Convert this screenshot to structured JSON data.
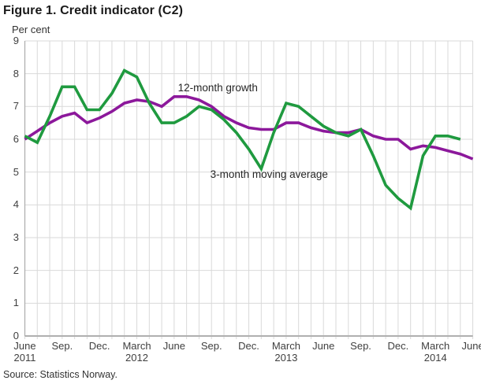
{
  "page": {
    "title": "Figure 1. Credit indicator (C2)",
    "subtitle": "Per cent",
    "source": "Source: Statistics Norway."
  },
  "colors": {
    "growth_line": "#1f9a3f",
    "moving_avg_line": "#8c189b",
    "grid": "#d9d9d9",
    "axis": "#b0b0b0",
    "tick_text": "#404040"
  },
  "chart_data": {
    "type": "line",
    "title": "Figure 1. Credit indicator (C2)",
    "ylabel": "Per cent",
    "xlabel": "",
    "ylim": [
      0,
      9
    ],
    "y_tick_step": 1,
    "grid": "on",
    "legend_position": "inline-annotations",
    "x_range": "monthly, June 2011 to June 2014",
    "months_total": 37,
    "x_ticks": [
      {
        "label": "June",
        "year": "2011",
        "month_index": 0
      },
      {
        "label": "Sep.",
        "year": "",
        "month_index": 3
      },
      {
        "label": "Dec.",
        "year": "",
        "month_index": 6
      },
      {
        "label": "March",
        "year": "2012",
        "month_index": 9
      },
      {
        "label": "June",
        "year": "",
        "month_index": 12
      },
      {
        "label": "Sep.",
        "year": "",
        "month_index": 15
      },
      {
        "label": "Dec.",
        "year": "",
        "month_index": 18
      },
      {
        "label": "March",
        "year": "2013",
        "month_index": 21
      },
      {
        "label": "June",
        "year": "",
        "month_index": 24
      },
      {
        "label": "Sep.",
        "year": "",
        "month_index": 27
      },
      {
        "label": "Dec.",
        "year": "",
        "month_index": 30
      },
      {
        "label": "March",
        "year": "2014",
        "month_index": 33
      },
      {
        "label": "June",
        "year": "",
        "month_index": 36
      }
    ],
    "series": [
      {
        "name": "3-month moving average",
        "color": "#8c189b",
        "start_month_index": 0,
        "values": [
          6.0,
          6.25,
          6.5,
          6.7,
          6.8,
          6.5,
          6.65,
          6.85,
          7.1,
          7.2,
          7.15,
          7.0,
          7.3,
          7.3,
          7.2,
          7.0,
          6.7,
          6.5,
          6.35,
          6.3,
          6.3,
          6.5,
          6.5,
          6.35,
          6.25,
          6.2,
          6.2,
          6.3,
          6.1,
          6.0,
          6.0,
          5.7,
          5.8,
          5.75,
          5.65,
          5.55,
          5.4
        ]
      },
      {
        "name": "12-month growth",
        "color": "#1f9a3f",
        "start_month_index": 0,
        "values": [
          6.1,
          5.9,
          6.7,
          7.6,
          7.6,
          6.9,
          6.9,
          7.4,
          8.1,
          7.9,
          7.1,
          6.5,
          6.5,
          6.7,
          7.0,
          6.9,
          6.6,
          6.2,
          5.7,
          5.1,
          6.2,
          7.1,
          7.0,
          6.7,
          6.4,
          6.2,
          6.1,
          6.3,
          5.5,
          4.6,
          4.2,
          3.9,
          5.5,
          6.1,
          6.1,
          6.0
        ]
      }
    ],
    "annotations": [
      {
        "text": "12-month growth",
        "month_x": 12.3,
        "value_y": 7.55
      },
      {
        "text": "3-month moving average",
        "month_x": 14.9,
        "value_y": 4.92
      }
    ]
  }
}
